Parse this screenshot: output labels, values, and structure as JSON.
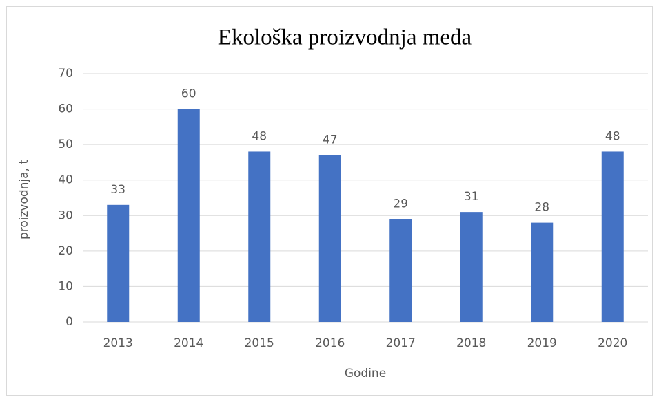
{
  "chart_data": {
    "type": "bar",
    "title": "Ekološka proizvodnja meda",
    "x_label": "Godine",
    "y_label": "proizvodnja, t",
    "categories": [
      "2013",
      "2014",
      "2015",
      "2016",
      "2017",
      "2018",
      "2019",
      "2020"
    ],
    "values": [
      33,
      60,
      48,
      47,
      29,
      31,
      28,
      48
    ],
    "color": "#4472c4",
    "ylim": [
      0,
      70
    ],
    "yticks": [
      0,
      10,
      20,
      30,
      40,
      50,
      60,
      70
    ],
    "grid": true
  }
}
